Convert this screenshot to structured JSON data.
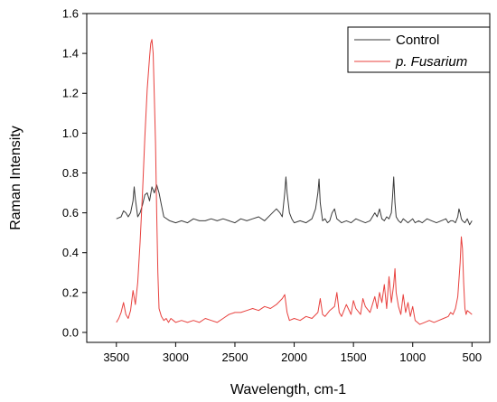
{
  "chart_data": {
    "type": "line",
    "xlabel": "Wavelength, cm-1",
    "ylabel": "Raman Intensity",
    "xlim": [
      3750,
      350
    ],
    "ylim": [
      -0.05,
      1.6
    ],
    "x_ticks": [
      3500,
      3000,
      2500,
      2000,
      1500,
      1000,
      500
    ],
    "x_tick_labels": [
      "3500",
      "3000",
      "2500",
      "2000",
      "1500",
      "1000",
      "500"
    ],
    "y_ticks": [
      0.0,
      0.2,
      0.4,
      0.6,
      0.8,
      1.0,
      1.2,
      1.4,
      1.6
    ],
    "y_tick_labels": [
      "0.0",
      "0.2",
      "0.4",
      "0.6",
      "0.8",
      "1.0",
      "1.2",
      "1.4",
      "1.6"
    ],
    "grid": false,
    "legend_position": "top-right",
    "series": [
      {
        "name": "Control",
        "color": "#3a3a3a",
        "x": [
          3500,
          3460,
          3440,
          3420,
          3400,
          3380,
          3360,
          3350,
          3340,
          3320,
          3300,
          3280,
          3260,
          3240,
          3220,
          3200,
          3180,
          3160,
          3140,
          3120,
          3100,
          3050,
          3000,
          2950,
          2900,
          2850,
          2800,
          2750,
          2700,
          2650,
          2600,
          2550,
          2500,
          2450,
          2400,
          2350,
          2300,
          2250,
          2200,
          2150,
          2120,
          2100,
          2080,
          2070,
          2060,
          2040,
          2020,
          2000,
          1950,
          1900,
          1850,
          1820,
          1800,
          1790,
          1780,
          1760,
          1740,
          1720,
          1700,
          1680,
          1660,
          1640,
          1620,
          1600,
          1560,
          1520,
          1480,
          1440,
          1400,
          1360,
          1320,
          1300,
          1280,
          1260,
          1240,
          1220,
          1200,
          1180,
          1170,
          1160,
          1150,
          1140,
          1120,
          1100,
          1080,
          1060,
          1040,
          1020,
          1000,
          980,
          950,
          920,
          880,
          840,
          800,
          760,
          720,
          700,
          680,
          660,
          640,
          620,
          610,
          600,
          590,
          580,
          560,
          540,
          520,
          500
        ],
        "y": [
          0.57,
          0.58,
          0.61,
          0.6,
          0.58,
          0.6,
          0.66,
          0.73,
          0.67,
          0.58,
          0.6,
          0.64,
          0.69,
          0.7,
          0.66,
          0.73,
          0.7,
          0.74,
          0.7,
          0.64,
          0.58,
          0.56,
          0.55,
          0.56,
          0.55,
          0.57,
          0.56,
          0.56,
          0.57,
          0.56,
          0.57,
          0.56,
          0.55,
          0.57,
          0.56,
          0.57,
          0.58,
          0.56,
          0.59,
          0.62,
          0.6,
          0.58,
          0.7,
          0.78,
          0.7,
          0.6,
          0.57,
          0.55,
          0.56,
          0.55,
          0.57,
          0.62,
          0.7,
          0.77,
          0.65,
          0.56,
          0.57,
          0.55,
          0.56,
          0.6,
          0.62,
          0.57,
          0.56,
          0.55,
          0.56,
          0.55,
          0.57,
          0.56,
          0.55,
          0.56,
          0.6,
          0.58,
          0.62,
          0.57,
          0.56,
          0.58,
          0.57,
          0.6,
          0.68,
          0.78,
          0.65,
          0.58,
          0.56,
          0.55,
          0.57,
          0.56,
          0.55,
          0.56,
          0.57,
          0.55,
          0.56,
          0.55,
          0.57,
          0.56,
          0.55,
          0.56,
          0.57,
          0.55,
          0.56,
          0.56,
          0.55,
          0.58,
          0.62,
          0.6,
          0.57,
          0.56,
          0.55,
          0.57,
          0.54,
          0.56
        ]
      },
      {
        "name": "p. Fusarium",
        "color": "#e8413e",
        "x": [
          3500,
          3480,
          3460,
          3440,
          3420,
          3400,
          3380,
          3360,
          3340,
          3320,
          3300,
          3280,
          3260,
          3240,
          3220,
          3210,
          3200,
          3190,
          3180,
          3170,
          3160,
          3150,
          3140,
          3120,
          3100,
          3080,
          3060,
          3040,
          3020,
          3000,
          2950,
          2900,
          2850,
          2800,
          2750,
          2700,
          2650,
          2600,
          2550,
          2500,
          2450,
          2400,
          2350,
          2300,
          2250,
          2200,
          2150,
          2100,
          2080,
          2060,
          2040,
          2000,
          1950,
          1900,
          1850,
          1800,
          1780,
          1760,
          1740,
          1700,
          1660,
          1640,
          1620,
          1600,
          1560,
          1520,
          1500,
          1480,
          1440,
          1420,
          1400,
          1360,
          1320,
          1300,
          1280,
          1260,
          1240,
          1220,
          1200,
          1180,
          1160,
          1150,
          1140,
          1120,
          1100,
          1080,
          1060,
          1040,
          1020,
          1000,
          980,
          960,
          940,
          900,
          860,
          820,
          780,
          740,
          700,
          680,
          660,
          640,
          620,
          600,
          590,
          580,
          570,
          560,
          550,
          540,
          520,
          500
        ],
        "y": [
          0.05,
          0.07,
          0.1,
          0.15,
          0.09,
          0.07,
          0.11,
          0.21,
          0.14,
          0.25,
          0.45,
          0.7,
          0.98,
          1.22,
          1.38,
          1.45,
          1.47,
          1.4,
          1.18,
          0.95,
          0.6,
          0.3,
          0.12,
          0.08,
          0.06,
          0.07,
          0.05,
          0.07,
          0.06,
          0.05,
          0.06,
          0.05,
          0.06,
          0.05,
          0.07,
          0.06,
          0.05,
          0.07,
          0.09,
          0.1,
          0.1,
          0.11,
          0.12,
          0.11,
          0.13,
          0.12,
          0.14,
          0.17,
          0.19,
          0.1,
          0.06,
          0.07,
          0.06,
          0.08,
          0.07,
          0.1,
          0.17,
          0.09,
          0.08,
          0.11,
          0.13,
          0.2,
          0.1,
          0.08,
          0.14,
          0.09,
          0.16,
          0.12,
          0.09,
          0.17,
          0.13,
          0.1,
          0.18,
          0.12,
          0.2,
          0.15,
          0.24,
          0.12,
          0.28,
          0.15,
          0.24,
          0.32,
          0.2,
          0.13,
          0.09,
          0.19,
          0.1,
          0.15,
          0.08,
          0.13,
          0.06,
          0.05,
          0.04,
          0.05,
          0.06,
          0.05,
          0.06,
          0.07,
          0.08,
          0.1,
          0.09,
          0.12,
          0.18,
          0.35,
          0.48,
          0.42,
          0.25,
          0.12,
          0.09,
          0.11,
          0.1,
          0.09
        ]
      }
    ]
  }
}
